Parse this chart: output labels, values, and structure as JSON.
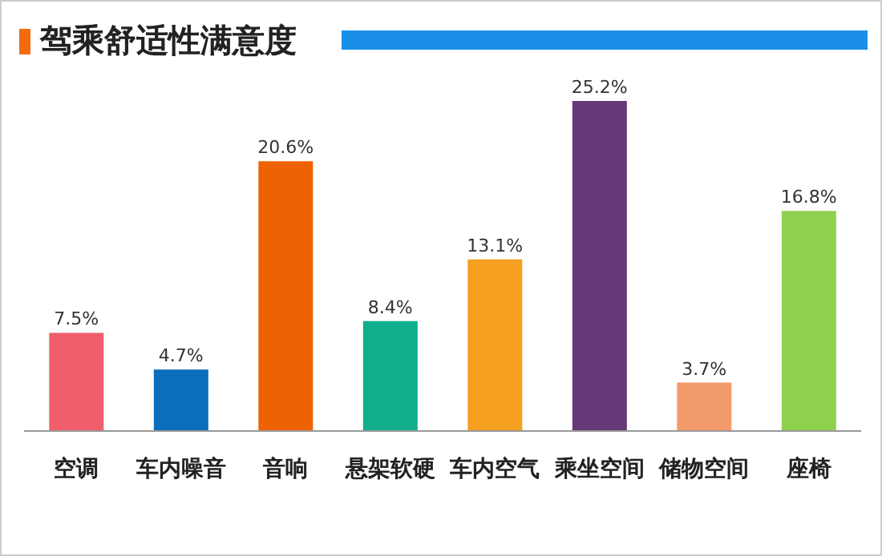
{
  "chart_data": {
    "type": "bar",
    "title": "驾乘舒适性满意度",
    "categories": [
      "空调",
      "车内噪音",
      "音响",
      "悬架软硬",
      "车内空气",
      "乘坐空间",
      "储物空间",
      "座椅"
    ],
    "values": [
      7.5,
      4.7,
      20.6,
      8.4,
      13.1,
      25.2,
      3.7,
      16.8
    ],
    "value_labels": [
      "7.5%",
      "4.7%",
      "20.6%",
      "8.4%",
      "13.1%",
      "25.2%",
      "3.7%",
      "16.8%"
    ],
    "colors": [
      "#ef5f6b",
      "#0a6ebd",
      "#ee6206",
      "#10ae8c",
      "#f5a020",
      "#663877",
      "#f39a6b",
      "#8fd14f"
    ]
  }
}
